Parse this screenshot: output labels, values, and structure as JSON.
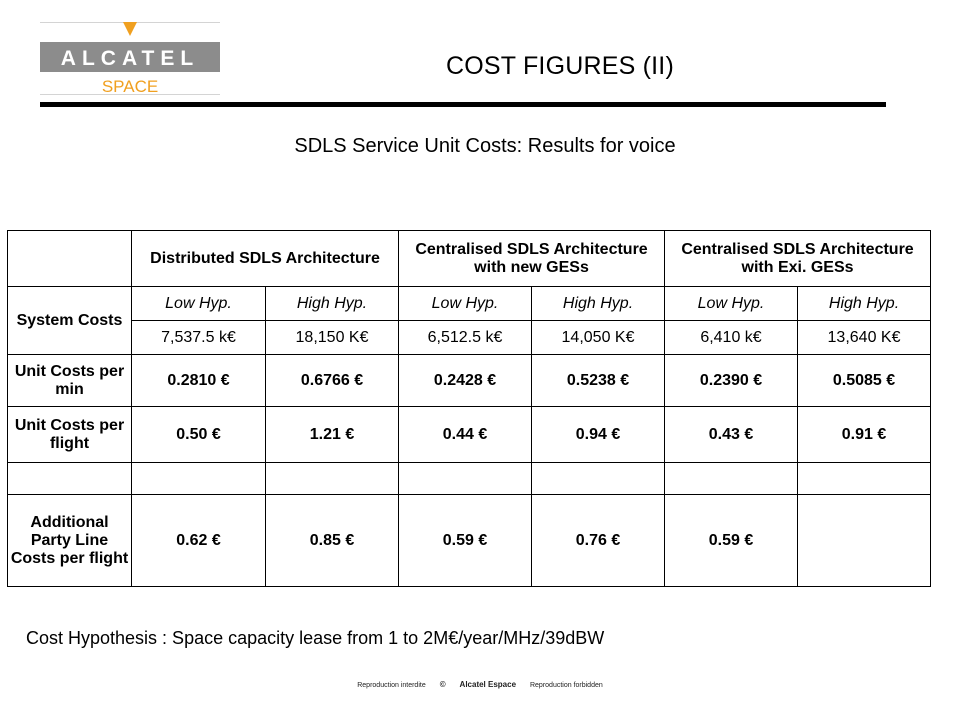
{
  "header": {
    "logo_brand": "ALCATEL",
    "logo_sub": "SPACE",
    "title": "COST FIGURES (II)",
    "subtitle": "SDLS Service Unit Costs: Results for voice"
  },
  "table": {
    "architectures": [
      "Distributed SDLS Architecture",
      "Centralised SDLS Architecture with new GESs",
      "Centralised SDLS Architecture with Exi. GESs"
    ],
    "hypotheses": [
      "Low Hyp.",
      "High Hyp.",
      "Low Hyp.",
      "High Hyp.",
      "Low Hyp.",
      "High Hyp."
    ],
    "rows": [
      {
        "label": "System Costs",
        "values": [
          "7,537.5 k€",
          "18,150 K€",
          "6,512.5 k€",
          "14,050 K€",
          "6,410 k€",
          "13,640 K€"
        ]
      },
      {
        "label": "Unit Costs per min",
        "values": [
          "0.2810 €",
          "0.6766 €",
          "0.2428 €",
          "0.5238 €",
          "0.2390 €",
          "0.5085 €"
        ]
      },
      {
        "label": "Unit Costs per flight",
        "values": [
          "0.50 €",
          "1.21 €",
          "0.44 €",
          "0.94 €",
          "0.43 €",
          "0.91 €"
        ]
      },
      {
        "label": "",
        "values": [
          "",
          "",
          "",
          "",
          "",
          ""
        ]
      },
      {
        "label": "Additional Party Line Costs per flight",
        "values": [
          "0.62 €",
          "0.85 €",
          "0.59 €",
          "0.76 €",
          "0.59 €",
          ""
        ]
      }
    ]
  },
  "note": "Cost Hypothesis : Space capacity lease from 1 to 2M€/year/MHz/39dBW",
  "footer": {
    "left": "Reproduction interdite",
    "copyright": "©",
    "middle": "Alcatel Espace",
    "right": "Reproduction forbidden"
  },
  "colors": {
    "logo_grey": "#8c8c8c",
    "logo_orange": "#f0a020",
    "rule": "#000000"
  }
}
